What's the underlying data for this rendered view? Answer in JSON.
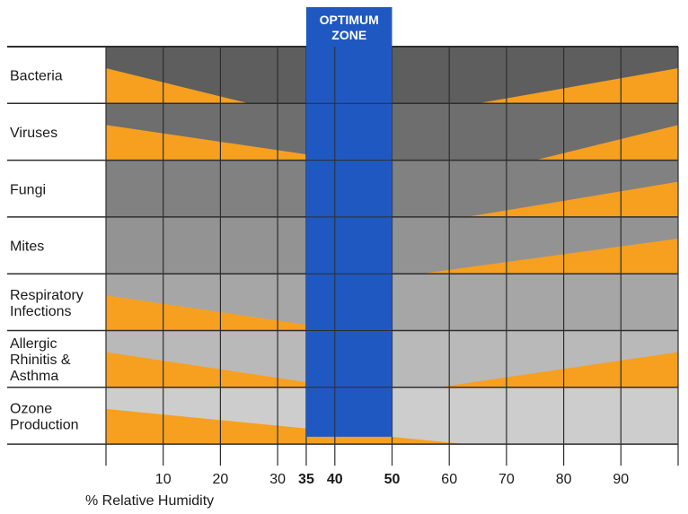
{
  "chart_data": {
    "type": "area",
    "title": "",
    "xlabel": "% Relative Humidity",
    "xlim": [
      0,
      100
    ],
    "x_ticks": [
      {
        "value": 10,
        "label": "10",
        "bold": false
      },
      {
        "value": 20,
        "label": "20",
        "bold": false
      },
      {
        "value": 30,
        "label": "30",
        "bold": false
      },
      {
        "value": 35,
        "label": "35",
        "bold": true
      },
      {
        "value": 40,
        "label": "40",
        "bold": true
      },
      {
        "value": 50,
        "label": "50",
        "bold": true
      },
      {
        "value": 60,
        "label": "60",
        "bold": false
      },
      {
        "value": 70,
        "label": "70",
        "bold": false
      },
      {
        "value": 80,
        "label": "80",
        "bold": false
      },
      {
        "value": 90,
        "label": "90",
        "bold": false
      }
    ],
    "optimum_zone": {
      "label_line1": "OPTIMUM",
      "label_line2": "ZONE",
      "from": 35,
      "to": 50
    },
    "rows": [
      {
        "label": [
          "Bacteria"
        ],
        "left_ends": 25,
        "right_starts": 65
      },
      {
        "label": [
          "Viruses"
        ],
        "left_ends": 42,
        "right_starts": 75
      },
      {
        "label": [
          "Fungi"
        ],
        "left_ends": null,
        "right_starts": 63
      },
      {
        "label": [
          "Mites"
        ],
        "left_ends": null,
        "right_starts": 55
      },
      {
        "label": [
          "Respiratory",
          "Infections"
        ],
        "left_ends": 42,
        "right_starts": null
      },
      {
        "label": [
          "Allergic",
          "Rhinitis &",
          "Asthma"
        ],
        "left_ends": 41,
        "right_starts": 58
      },
      {
        "label": [
          "Ozone",
          "Production"
        ],
        "left_ends": 63,
        "right_starts": null
      }
    ],
    "colors": {
      "wedge": "#f7a01f",
      "optimum": "#1f58c0",
      "optimum_text": "#ffffff",
      "row_backgrounds": [
        "#5e5e5e",
        "#6e6e6e",
        "#818181",
        "#939393",
        "#a6a6a6",
        "#b9b9b9",
        "#cdcdcd"
      ],
      "grid": "#2e2e2e",
      "label_text": "#1a1a1a"
    },
    "grid": true
  }
}
